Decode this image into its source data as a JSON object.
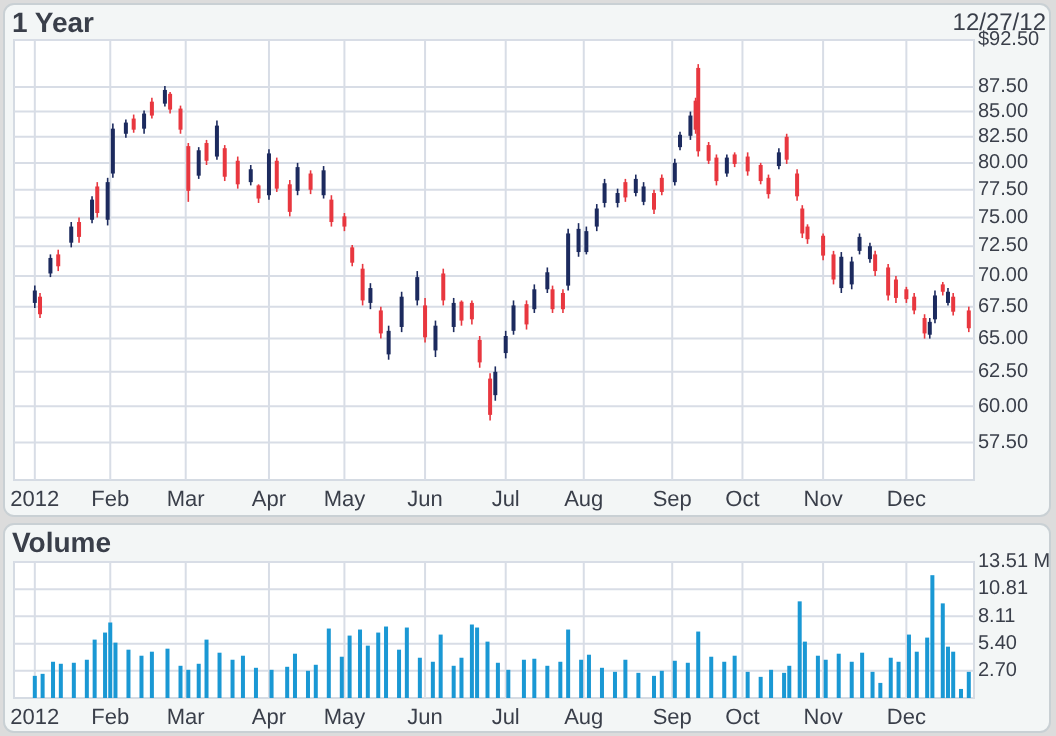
{
  "chart_data": [
    {
      "type": "candlestick",
      "title": "1 Year",
      "annotations": [
        "12/27/12"
      ],
      "xlim": [
        "2011-12-26",
        "2012-12-29"
      ],
      "xticks": [
        {
          "value": "2012-01-03",
          "label": "2012"
        },
        {
          "value": "2012-02-01",
          "label": "Feb"
        },
        {
          "value": "2012-03-01",
          "label": "Mar"
        },
        {
          "value": "2012-04-02",
          "label": "Apr"
        },
        {
          "value": "2012-05-01",
          "label": "May"
        },
        {
          "value": "2012-06-01",
          "label": "Jun"
        },
        {
          "value": "2012-07-02",
          "label": "Jul"
        },
        {
          "value": "2012-08-01",
          "label": "Aug"
        },
        {
          "value": "2012-09-04",
          "label": "Sep"
        },
        {
          "value": "2012-10-01",
          "label": "Oct"
        },
        {
          "value": "2012-11-01",
          "label": "Nov"
        },
        {
          "value": "2012-12-03",
          "label": "Dec"
        }
      ],
      "ylim": [
        55,
        92.5
      ],
      "log": true,
      "grid": true,
      "yticks": [
        {
          "value": 57.5,
          "label": "57.50"
        },
        {
          "value": 60,
          "label": "60.00"
        },
        {
          "value": 62.5,
          "label": "62.50"
        },
        {
          "value": 65,
          "label": "65.00"
        },
        {
          "value": 67.5,
          "label": "67.50"
        },
        {
          "value": 70,
          "label": "70.00"
        },
        {
          "value": 72.5,
          "label": "72.50"
        },
        {
          "value": 75,
          "label": "75.00"
        },
        {
          "value": 77.5,
          "label": "77.50"
        },
        {
          "value": 80,
          "label": "80.00"
        },
        {
          "value": 82.5,
          "label": "82.50"
        },
        {
          "value": 85,
          "label": "85.00"
        },
        {
          "value": 87.5,
          "label": "87.50"
        },
        {
          "value": 92.5,
          "label": "$92.50"
        }
      ],
      "series": [
        {
          "color": "#1c2a5e",
          "x": [
            "2012-01-03",
            "2012-01-09",
            "2012-01-17",
            "2012-01-25",
            "2012-01-31",
            "2012-02-02",
            "2012-02-07",
            "2012-02-14",
            "2012-02-22",
            "2012-03-06",
            "2012-03-13",
            "2012-03-26",
            "2012-04-02",
            "2012-04-13",
            "2012-04-23",
            "2012-05-11",
            "2012-05-18",
            "2012-05-23",
            "2012-05-29",
            "2012-06-05",
            "2012-06-12",
            "2012-06-28",
            "2012-07-02",
            "2012-07-05",
            "2012-07-13",
            "2012-07-18",
            "2012-07-26",
            "2012-07-30",
            "2012-08-02",
            "2012-08-06",
            "2012-08-09",
            "2012-08-14",
            "2012-08-21",
            "2012-08-24",
            "2012-09-05",
            "2012-09-07",
            "2012-09-11",
            "2012-09-25",
            "2012-10-15",
            "2012-11-08",
            "2012-11-12",
            "2012-11-15",
            "2012-11-19",
            "2012-12-12",
            "2012-12-14",
            "2012-12-19"
          ],
          "ohlc": [
            [
              67.8,
              69.2,
              67.4,
              68.8
            ],
            [
              70.2,
              71.8,
              69.9,
              71.5
            ],
            [
              72.8,
              74.6,
              72.4,
              74.2
            ],
            [
              74.8,
              76.9,
              74.5,
              76.6
            ],
            [
              74.8,
              78.6,
              74.3,
              78.2
            ],
            [
              79,
              83.8,
              78.6,
              83.3
            ],
            [
              82.8,
              84.2,
              82.4,
              83.9
            ],
            [
              83.3,
              85.1,
              82.8,
              84.8
            ],
            [
              85.8,
              87.6,
              85.5,
              87.2
            ],
            [
              78.8,
              81.5,
              78.5,
              81.2
            ],
            [
              80.6,
              84.1,
              80.3,
              83.6
            ],
            [
              78.2,
              79.8,
              77.9,
              79.4
            ],
            [
              77,
              81.3,
              76.6,
              80.9
            ],
            [
              77.4,
              80,
              77,
              79.6
            ],
            [
              77,
              79.7,
              76.7,
              79.3
            ],
            [
              67.8,
              69.4,
              67.3,
              69
            ],
            [
              63.8,
              66,
              63.4,
              65.6
            ],
            [
              65.9,
              68.7,
              65.5,
              68.3
            ],
            [
              68,
              70.4,
              67.6,
              69.9
            ],
            [
              64.1,
              66.4,
              63.6,
              66
            ],
            [
              65.9,
              68.2,
              65.5,
              67.8
            ],
            [
              60.8,
              62.9,
              60.4,
              62.5
            ],
            [
              63.9,
              65.6,
              63.5,
              65.2
            ],
            [
              65.6,
              68,
              65.3,
              67.6
            ],
            [
              67.3,
              69.3,
              67,
              68.9
            ],
            [
              68.9,
              70.7,
              68.6,
              70.3
            ],
            [
              69.2,
              74,
              68.8,
              73.6
            ],
            [
              72,
              74.5,
              71.6,
              74
            ],
            [
              72,
              74.2,
              71.8,
              73.8
            ],
            [
              74.2,
              76.2,
              73.8,
              75.8
            ],
            [
              76.3,
              78.5,
              75.9,
              78.1
            ],
            [
              76.3,
              77.6,
              75.9,
              77.2
            ],
            [
              77.2,
              78.9,
              76.9,
              78.5
            ],
            [
              76.4,
              78.2,
              76.1,
              77.8
            ],
            [
              78.2,
              80.4,
              77.9,
              80
            ],
            [
              81.5,
              83,
              81.2,
              82.7
            ],
            [
              82.6,
              85,
              82.2,
              84.6
            ],
            [
              79,
              80.8,
              78.7,
              80.5
            ],
            [
              79.7,
              81.4,
              79.4,
              81
            ],
            [
              69,
              72,
              68.6,
              71.6
            ],
            [
              69.3,
              71.6,
              68.9,
              71.2
            ],
            [
              72.1,
              73.6,
              71.8,
              73.3
            ],
            [
              71.4,
              72.8,
              71.1,
              72.5
            ],
            [
              65.3,
              66.6,
              65,
              66.3
            ],
            [
              66.5,
              68.8,
              66.2,
              68.4
            ],
            [
              67.8,
              69,
              67.6,
              68.7
            ]
          ]
        },
        {
          "color": "#e8373f",
          "x": [
            "2012-01-05",
            "2012-01-12",
            "2012-01-20",
            "2012-01-27",
            "2012-02-10",
            "2012-02-17",
            "2012-02-24",
            "2012-02-28",
            "2012-03-02",
            "2012-03-09",
            "2012-03-16",
            "2012-03-21",
            "2012-03-29",
            "2012-04-05",
            "2012-04-10",
            "2012-04-18",
            "2012-04-26",
            "2012-05-01",
            "2012-05-04",
            "2012-05-08",
            "2012-05-15",
            "2012-06-01",
            "2012-06-08",
            "2012-06-15",
            "2012-06-19",
            "2012-06-22",
            "2012-06-26",
            "2012-07-10",
            "2012-07-20",
            "2012-07-24",
            "2012-08-17",
            "2012-08-28",
            "2012-08-31",
            "2012-09-13",
            "2012-09-14",
            "2012-09-18",
            "2012-09-21",
            "2012-09-28",
            "2012-10-03",
            "2012-10-08",
            "2012-10-11",
            "2012-10-18",
            "2012-10-22",
            "2012-10-24",
            "2012-10-26",
            "2012-11-01",
            "2012-11-05",
            "2012-11-21",
            "2012-11-26",
            "2012-11-29",
            "2012-12-03",
            "2012-12-06",
            "2012-12-10",
            "2012-12-17",
            "2012-12-21",
            "2012-12-27"
          ],
          "ohlc": [
            [
              68.3,
              68.6,
              66.6,
              66.9
            ],
            [
              71.8,
              72.2,
              70.4,
              70.8
            ],
            [
              74.6,
              75,
              72.8,
              73.3
            ],
            [
              77.8,
              78.2,
              75,
              75.4
            ],
            [
              84.3,
              84.7,
              82.9,
              83.2
            ],
            [
              86,
              86.4,
              84.3,
              84.6
            ],
            [
              86.8,
              87,
              84.8,
              85.2
            ],
            [
              85.3,
              85.6,
              82.8,
              83.2
            ],
            [
              81.6,
              81.9,
              76.4,
              77.4
            ],
            [
              81.9,
              82.2,
              79.8,
              80.2
            ],
            [
              81.4,
              81.7,
              78.3,
              78.7
            ],
            [
              80.2,
              80.6,
              77.6,
              78
            ],
            [
              77.9,
              78,
              76.3,
              76.7
            ],
            [
              80.2,
              80.5,
              77.3,
              77.6
            ],
            [
              78,
              78.4,
              75.1,
              75.5
            ],
            [
              79,
              79.3,
              77.1,
              77.5
            ],
            [
              76.6,
              77,
              74.2,
              74.6
            ],
            [
              75.1,
              75.4,
              73.8,
              74.2
            ],
            [
              72.4,
              72.6,
              70.8,
              71.1
            ],
            [
              70.6,
              71,
              67.6,
              68
            ],
            [
              67.2,
              67.5,
              65,
              65.4
            ],
            [
              67.6,
              68.2,
              64.7,
              65.1
            ],
            [
              70.2,
              70.6,
              67.6,
              68
            ],
            [
              67.9,
              68,
              66,
              66.4
            ],
            [
              67.8,
              68,
              66.1,
              66.5
            ],
            [
              64.9,
              65.2,
              62.8,
              63.2
            ],
            [
              62,
              62.4,
              59,
              59.4
            ],
            [
              67.7,
              68,
              65.7,
              66.1
            ],
            [
              68.9,
              69.2,
              67,
              67.3
            ],
            [
              68.6,
              68.9,
              67,
              67.3
            ],
            [
              78.2,
              78.5,
              76.4,
              76.8
            ],
            [
              77.2,
              77.5,
              75.3,
              75.7
            ],
            [
              78.6,
              78.9,
              77,
              77.3
            ],
            [
              86.1,
              86.4,
              82.8,
              83.2
            ],
            [
              89.5,
              89.9,
              80.6,
              81.1
            ],
            [
              81.7,
              82,
              79.9,
              80.2
            ],
            [
              80.5,
              80.8,
              77.9,
              78.3
            ],
            [
              80.8,
              81,
              79.6,
              79.9
            ],
            [
              80.6,
              81,
              78.8,
              79.2
            ],
            [
              79.8,
              80,
              78,
              78.3
            ],
            [
              78.6,
              78.9,
              76.7,
              77.1
            ],
            [
              82.5,
              82.8,
              79.9,
              80.3
            ],
            [
              79,
              79.4,
              76.5,
              76.9
            ],
            [
              75.8,
              76.1,
              73.2,
              73.6
            ],
            [
              74.2,
              74.4,
              72.7,
              73.1
            ],
            [
              73.4,
              73.6,
              71.3,
              71.7
            ],
            [
              71.8,
              72.1,
              69.3,
              69.7
            ],
            [
              71.8,
              72.1,
              70,
              70.4
            ],
            [
              70.7,
              71,
              68,
              68.4
            ],
            [
              69.7,
              70,
              67.8,
              68.2
            ],
            [
              68.9,
              69.1,
              67.8,
              68.1
            ],
            [
              68.3,
              68.6,
              66.9,
              67.2
            ],
            [
              66.6,
              66.9,
              65,
              65.4
            ],
            [
              69.3,
              69.5,
              68.4,
              68.7
            ],
            [
              68.3,
              68.6,
              66.8,
              67.1
            ],
            [
              67.2,
              67.5,
              65.5,
              65.8
            ]
          ]
        }
      ]
    },
    {
      "type": "bar",
      "title": "Volume",
      "color": "#1a98d4",
      "grid": true,
      "xlim": [
        "2011-12-26",
        "2012-12-29"
      ],
      "xticks": [
        {
          "value": "2012-01-03",
          "label": "2012"
        },
        {
          "value": "2012-02-01",
          "label": "Feb"
        },
        {
          "value": "2012-03-01",
          "label": "Mar"
        },
        {
          "value": "2012-04-02",
          "label": "Apr"
        },
        {
          "value": "2012-05-01",
          "label": "May"
        },
        {
          "value": "2012-06-01",
          "label": "Jun"
        },
        {
          "value": "2012-07-02",
          "label": "Jul"
        },
        {
          "value": "2012-08-01",
          "label": "Aug"
        },
        {
          "value": "2012-09-04",
          "label": "Sep"
        },
        {
          "value": "2012-10-01",
          "label": "Oct"
        },
        {
          "value": "2012-11-01",
          "label": "Nov"
        },
        {
          "value": "2012-12-03",
          "label": "Dec"
        }
      ],
      "ylim": [
        0,
        13.51
      ],
      "yticks": [
        {
          "value": 2.7,
          "label": "2.70"
        },
        {
          "value": 5.4,
          "label": "5.40"
        },
        8.11,
        10.81,
        {
          "value": 13.51,
          "label": "13.51 M"
        }
      ],
      "x": [
        "2012-01-03",
        "2012-01-06",
        "2012-01-10",
        "2012-01-13",
        "2012-01-18",
        "2012-01-23",
        "2012-01-26",
        "2012-01-30",
        "2012-02-01",
        "2012-02-03",
        "2012-02-08",
        "2012-02-13",
        "2012-02-17",
        "2012-02-23",
        "2012-02-28",
        "2012-03-02",
        "2012-03-06",
        "2012-03-09",
        "2012-03-14",
        "2012-03-19",
        "2012-03-23",
        "2012-03-28",
        "2012-04-03",
        "2012-04-09",
        "2012-04-12",
        "2012-04-17",
        "2012-04-20",
        "2012-04-25",
        "2012-04-30",
        "2012-05-03",
        "2012-05-07",
        "2012-05-10",
        "2012-05-14",
        "2012-05-17",
        "2012-05-22",
        "2012-05-25",
        "2012-05-30",
        "2012-06-04",
        "2012-06-07",
        "2012-06-12",
        "2012-06-15",
        "2012-06-19",
        "2012-06-21",
        "2012-06-25",
        "2012-06-29",
        "2012-07-03",
        "2012-07-09",
        "2012-07-13",
        "2012-07-18",
        "2012-07-23",
        "2012-07-26",
        "2012-07-31",
        "2012-08-03",
        "2012-08-08",
        "2012-08-13",
        "2012-08-17",
        "2012-08-22",
        "2012-08-28",
        "2012-08-31",
        "2012-09-05",
        "2012-09-10",
        "2012-09-14",
        "2012-09-19",
        "2012-09-24",
        "2012-09-28",
        "2012-10-03",
        "2012-10-08",
        "2012-10-12",
        "2012-10-17",
        "2012-10-19",
        "2012-10-23",
        "2012-10-25",
        "2012-10-30",
        "2012-11-02",
        "2012-11-07",
        "2012-11-12",
        "2012-11-16",
        "2012-11-20",
        "2012-11-23",
        "2012-11-27",
        "2012-11-30",
        "2012-12-04",
        "2012-12-07",
        "2012-12-11",
        "2012-12-13",
        "2012-12-17",
        "2012-12-19",
        "2012-12-21",
        "2012-12-24",
        "2012-12-27"
      ],
      "values": [
        2.2,
        2.4,
        3.6,
        3.4,
        3.5,
        3.8,
        5.8,
        6.5,
        7.5,
        5.5,
        4.8,
        4.2,
        4.6,
        4.9,
        3.2,
        2.8,
        3.4,
        5.8,
        4.5,
        3.8,
        4.2,
        3.0,
        2.8,
        3.1,
        4.4,
        2.7,
        3.3,
        6.9,
        4.1,
        6.2,
        6.8,
        5.2,
        6.5,
        7.1,
        4.8,
        7.0,
        4.0,
        3.6,
        6.3,
        3.2,
        4.0,
        7.3,
        7.0,
        5.6,
        3.5,
        2.8,
        3.8,
        3.9,
        3.2,
        3.6,
        6.8,
        3.8,
        4.3,
        3.0,
        2.6,
        3.8,
        2.5,
        2.2,
        2.7,
        3.7,
        3.5,
        6.6,
        4.1,
        3.6,
        4.2,
        2.6,
        2.1,
        2.8,
        2.5,
        3.2,
        9.6,
        5.6,
        4.2,
        3.8,
        4.4,
        3.6,
        4.5,
        2.6,
        1.5,
        4.0,
        3.6,
        6.3,
        4.6,
        6.0,
        12.2,
        9.4,
        5.1,
        4.6,
        0.9,
        2.6
      ]
    }
  ]
}
